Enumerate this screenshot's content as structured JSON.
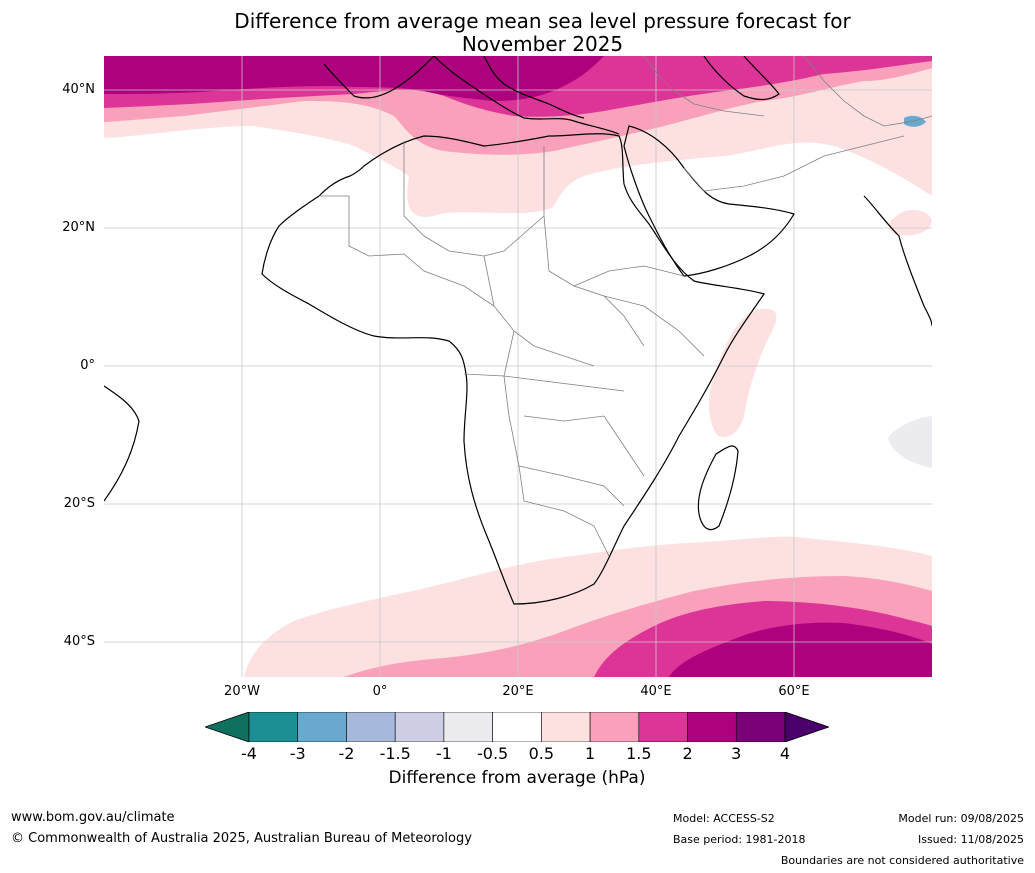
{
  "title_line1": "Difference from average mean sea level pressure forecast for",
  "title_line2": "November 2025",
  "lat_labels": [
    "40°N",
    "20°N",
    "0°",
    "20°S",
    "40°S"
  ],
  "lon_labels": [
    "20°W",
    "0°",
    "20°E",
    "40°E",
    "60°E"
  ],
  "colorbar": {
    "label": "Difference from average (hPa)",
    "ticks": [
      "-4",
      "-3",
      "-2",
      "-1.5",
      "-1",
      "-0.5",
      "0.5",
      "1",
      "1.5",
      "2",
      "3",
      "4"
    ],
    "colors": [
      "#1b8f94",
      "#69a9cf",
      "#a6b9da",
      "#cdcde3",
      "#ececf0",
      "#ffffff",
      "#fde0e0",
      "#f9a1bb",
      "#dd3497",
      "#ae017e",
      "#7a0177"
    ],
    "under_color": "#10705f",
    "over_color": "#49006a"
  },
  "footer": {
    "site": "www.bom.gov.au/climate",
    "copyright": "© Commonwealth of Australia 2025, Australian Bureau of Meteorology",
    "model": "Model: ACCESS-S2",
    "base_period": "Base period: 1981-2018",
    "model_run": "Model run: 09/08/2025",
    "issued": "Issued: 11/08/2025",
    "disclaimer": "Boundaries are not considered authoritative"
  }
}
